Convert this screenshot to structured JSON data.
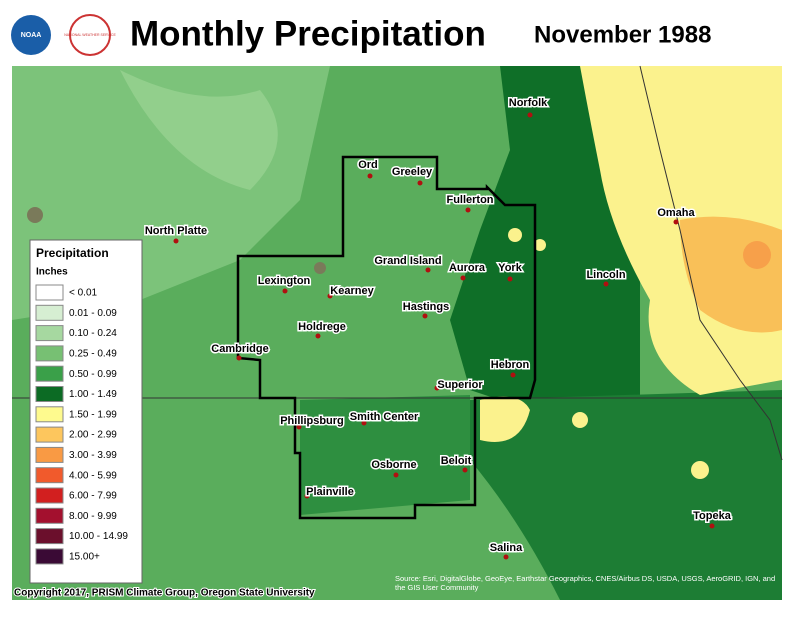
{
  "header": {
    "title": "Monthly Precipitation",
    "date": "November 1988",
    "logos": [
      "NOAA",
      "NATIONAL WEATHER SERVICE"
    ]
  },
  "cities": [
    "Norfolk",
    "Ord",
    "Greeley",
    "Fullerton",
    "North Platte",
    "Omaha",
    "Grand Island",
    "Aurora",
    "York",
    "Lincoln",
    "Lexington",
    "Kearney",
    "Hastings",
    "Holdrege",
    "Cambridge",
    "Hebron",
    "Superior",
    "Phillipsburg",
    "Smith Center",
    "Beloit",
    "Osborne",
    "Plainville",
    "Topeka",
    "Salina"
  ],
  "legend": {
    "title": "Precipitation",
    "units": "Inches",
    "items": [
      {
        "label": "< 0.01",
        "color": "#ffffff"
      },
      {
        "label": "0.01 - 0.09",
        "color": "#d6eed2"
      },
      {
        "label": "0.10 - 0.24",
        "color": "#a6d8a0"
      },
      {
        "label": "0.25 - 0.49",
        "color": "#77c073"
      },
      {
        "label": "0.50 - 0.99",
        "color": "#3aa049"
      },
      {
        "label": "1.00 - 1.49",
        "color": "#0c6b24"
      },
      {
        "label": "1.50 - 1.99",
        "color": "#fefa8e"
      },
      {
        "label": "2.00 - 2.99",
        "color": "#fdc65d"
      },
      {
        "label": "3.00 - 3.99",
        "color": "#f99a44"
      },
      {
        "label": "4.00 - 5.99",
        "color": "#f15a2c"
      },
      {
        "label": "6.00 - 7.99",
        "color": "#d21f1f"
      },
      {
        "label": "8.00 - 9.99",
        "color": "#a3102e"
      },
      {
        "label": "10.00 - 14.99",
        "color": "#6b0f2c"
      },
      {
        "label": "15.00+",
        "color": "#3a0a35"
      }
    ]
  },
  "footer": {
    "copyright": "Copyright 2017, PRISM Climate Group, Oregon State University",
    "source": "Source: Esri, DigitalGlobe, GeoEye, Earthstar Geographics, CNES/Airbus DS, USDA, USGS, AeroGRID, IGN, and the GIS User Community"
  }
}
